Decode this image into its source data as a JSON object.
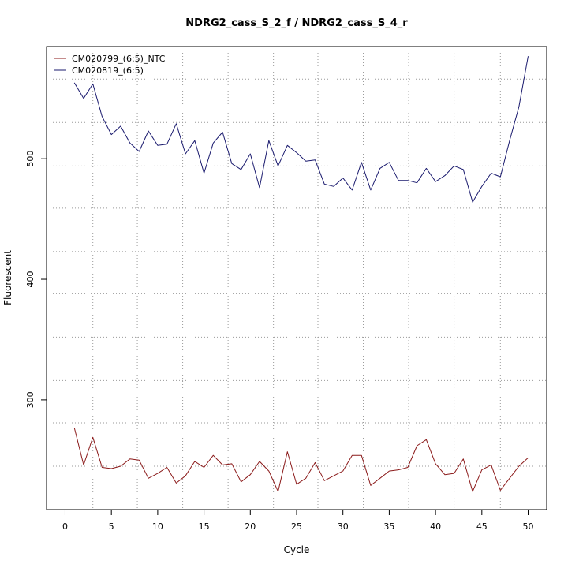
{
  "chart_data": {
    "type": "line",
    "title": "NDRG2_cass_S_2_f / NDRG2_cass_S_4_r",
    "xlabel": "Cycle",
    "ylabel": "Fluorescent",
    "xlim": [
      -2,
      52
    ],
    "ylim": [
      209,
      593
    ],
    "x_ticks": [
      0,
      5,
      10,
      15,
      20,
      25,
      30,
      35,
      40,
      45,
      50
    ],
    "y_ticks": [
      300,
      400,
      500
    ],
    "x_grid": [
      3,
      7.8,
      12.7,
      17.6,
      22.5,
      27.3,
      32.2,
      37.1,
      42,
      47
    ],
    "y_grid": [
      245,
      281,
      316,
      352,
      388,
      423,
      459,
      494,
      530,
      566
    ],
    "legend_position": "top-left",
    "x": [
      1,
      2,
      3,
      4,
      5,
      6,
      7,
      8,
      9,
      10,
      11,
      12,
      13,
      14,
      15,
      16,
      17,
      18,
      19,
      20,
      21,
      22,
      23,
      24,
      25,
      26,
      27,
      28,
      29,
      30,
      31,
      32,
      33,
      34,
      35,
      36,
      37,
      38,
      39,
      40,
      41,
      42,
      43,
      44,
      45,
      46,
      47,
      48,
      49,
      50
    ],
    "series": [
      {
        "name": "CM020799_(6:5)_NTC",
        "color": "#8b1a1a",
        "values": [
          277,
          246,
          269,
          244,
          243,
          245,
          251,
          250,
          235,
          239,
          244,
          231,
          237,
          249,
          244,
          254,
          246,
          247,
          232,
          238,
          249,
          241,
          224,
          257,
          230,
          235,
          248,
          233,
          237,
          241,
          254,
          254,
          229,
          235,
          241,
          242,
          244,
          262,
          267,
          247,
          238,
          239,
          251,
          224,
          242,
          246,
          225,
          235,
          245,
          252
        ]
      },
      {
        "name": "CM020819_(6:5)",
        "color": "#1a1a6e",
        "values": [
          563,
          550,
          562,
          535,
          520,
          527,
          513,
          506,
          523,
          511,
          512,
          529,
          504,
          515,
          488,
          513,
          522,
          496,
          491,
          504,
          476,
          515,
          494,
          511,
          505,
          498,
          499,
          479,
          477,
          484,
          474,
          497,
          474,
          492,
          497,
          482,
          482,
          480,
          492,
          481,
          486,
          494,
          491,
          464,
          477,
          488,
          485,
          515,
          543,
          585
        ]
      }
    ]
  }
}
